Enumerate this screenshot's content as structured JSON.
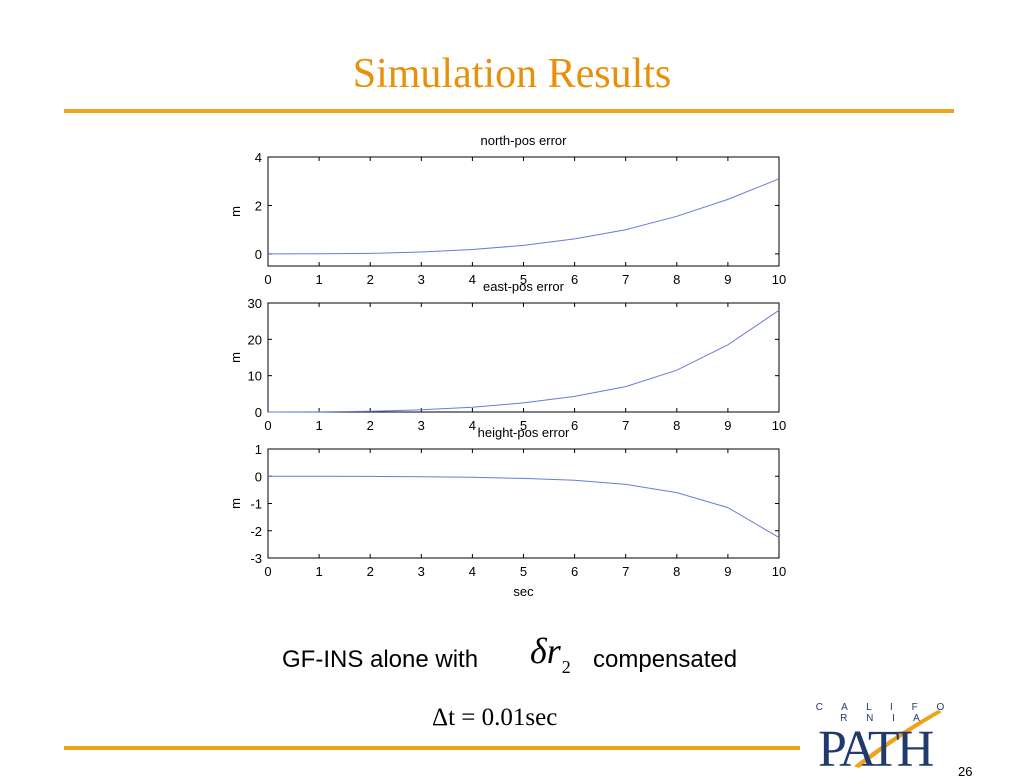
{
  "slide": {
    "title": "Simulation Results",
    "caption_pre": "GF-INS alone with",
    "caption_post": "compensated",
    "formula_symbol": "δr",
    "formula_subscript": "2",
    "formula_dt": "Δt = 0.01sec",
    "logo_top": "C A L I F O R N I A",
    "logo_word": "PATH",
    "page_number": "26"
  },
  "colors": {
    "accent": "#F0A21A",
    "title": "#E8900A",
    "line": "#6A7BD8",
    "logo": "#1F3A6E"
  },
  "chart_data": [
    {
      "type": "line",
      "title": "north-pos error",
      "xlabel": "",
      "ylabel": "m",
      "xlim": [
        0,
        10
      ],
      "ylim": [
        -0.5,
        4
      ],
      "xticks": [
        0,
        1,
        2,
        3,
        4,
        5,
        6,
        7,
        8,
        9,
        10
      ],
      "yticks": [
        0,
        2,
        4
      ],
      "grid": false,
      "series": [
        {
          "x": [
            0,
            1,
            2,
            3,
            4,
            5,
            6,
            7,
            8,
            9,
            10
          ],
          "y": [
            0,
            0.003,
            0.02,
            0.08,
            0.18,
            0.35,
            0.62,
            1.0,
            1.55,
            2.25,
            3.1
          ]
        }
      ]
    },
    {
      "type": "line",
      "title": "east-pos error",
      "xlabel": "",
      "ylabel": "m",
      "xlim": [
        0,
        10
      ],
      "ylim": [
        0,
        30
      ],
      "xticks": [
        0,
        1,
        2,
        3,
        4,
        5,
        6,
        7,
        8,
        9,
        10
      ],
      "yticks": [
        0,
        10,
        20,
        30
      ],
      "grid": false,
      "series": [
        {
          "x": [
            0,
            1,
            2,
            3,
            4,
            5,
            6,
            7,
            8,
            9,
            10
          ],
          "y": [
            0,
            0.03,
            0.2,
            0.6,
            1.3,
            2.5,
            4.3,
            7.0,
            11.5,
            18.5,
            28.0
          ]
        }
      ]
    },
    {
      "type": "line",
      "title": "height-pos error",
      "xlabel": "sec",
      "ylabel": "m",
      "xlim": [
        0,
        10
      ],
      "ylim": [
        -3,
        1
      ],
      "xticks": [
        0,
        1,
        2,
        3,
        4,
        5,
        6,
        7,
        8,
        9,
        10
      ],
      "yticks": [
        -3,
        -2,
        -1,
        0,
        1
      ],
      "grid": false,
      "series": [
        {
          "x": [
            0,
            1,
            2,
            3,
            4,
            5,
            6,
            7,
            8,
            9,
            10
          ],
          "y": [
            0,
            0,
            -0.005,
            -0.02,
            -0.04,
            -0.08,
            -0.15,
            -0.3,
            -0.6,
            -1.15,
            -2.25
          ]
        }
      ]
    }
  ]
}
